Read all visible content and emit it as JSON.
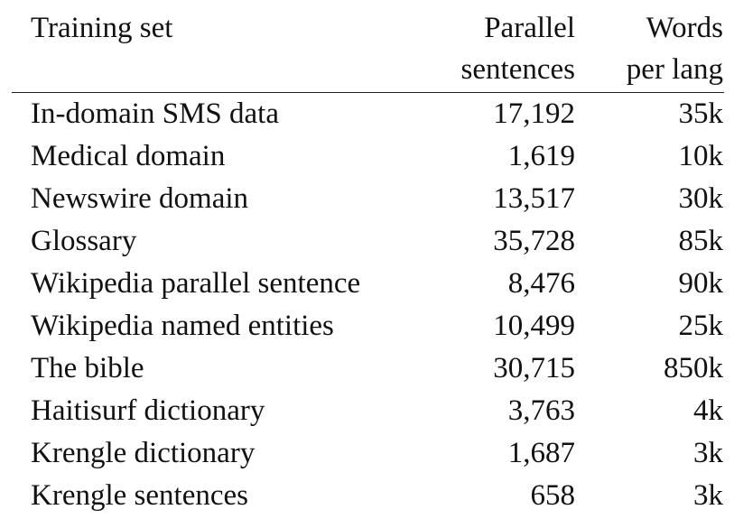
{
  "table": {
    "headers": {
      "training_set": "Training set",
      "parallel_line1": "Parallel",
      "parallel_line2": "sentences",
      "words_line1": "Words",
      "words_line2": "per lang"
    },
    "rows": [
      {
        "name": "In-domain SMS data",
        "sentences": "17,192",
        "words": "35k"
      },
      {
        "name": "Medical domain",
        "sentences": "1,619",
        "words": "10k"
      },
      {
        "name": "Newswire domain",
        "sentences": "13,517",
        "words": "30k"
      },
      {
        "name": "Glossary",
        "sentences": "35,728",
        "words": "85k"
      },
      {
        "name": "Wikipedia parallel sentence",
        "sentences": "8,476",
        "words": "90k"
      },
      {
        "name": "Wikipedia named entities",
        "sentences": "10,499",
        "words": "25k"
      },
      {
        "name": "The bible",
        "sentences": "30,715",
        "words": "850k"
      },
      {
        "name": "Haitisurf dictionary",
        "sentences": "3,763",
        "words": "4k"
      },
      {
        "name": "Krengle dictionary",
        "sentences": "1,687",
        "words": "3k"
      },
      {
        "name": "Krengle sentences",
        "sentences": "658",
        "words": "3k"
      }
    ]
  }
}
